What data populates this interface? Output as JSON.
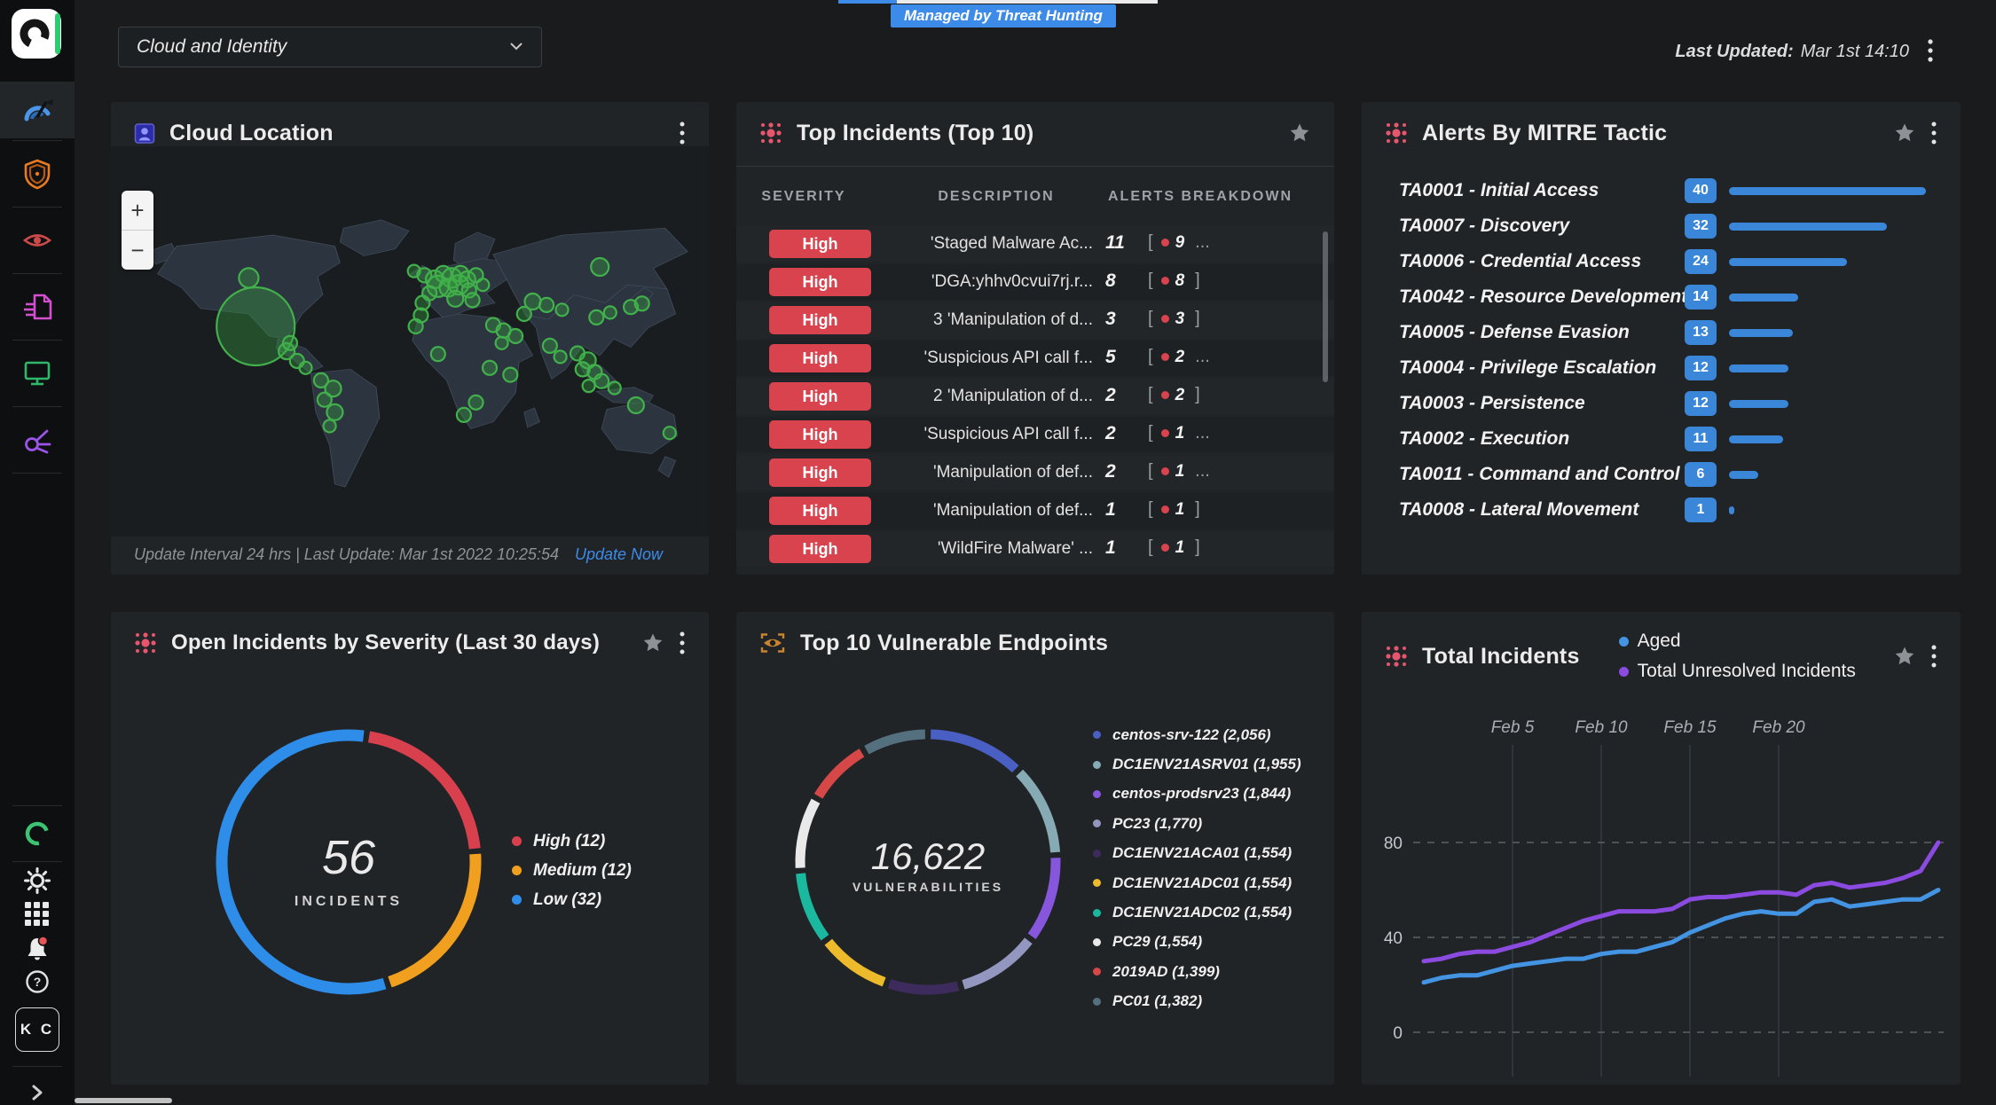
{
  "topbar": {
    "dropdown_value": "Cloud and Identity",
    "tab_badge": "Managed by Threat Hunting",
    "last_updated_label": "Last Updated:",
    "last_updated_value": "Mar 1st 14:10"
  },
  "sidebar": {
    "avatar_initials": "K C"
  },
  "panels": {
    "cloud_location": {
      "title": "Cloud Location",
      "zoom_in": "+",
      "zoom_out": "−",
      "footer_text": "Update Interval 24 hrs | Last Update: Mar 1st 2022 10:25:54",
      "update_now_label": "Update Now",
      "map_markers": [
        [
          152,
          98,
          11
        ],
        [
          160,
          168,
          44
        ],
        [
          196,
          204,
          9
        ],
        [
          208,
          218,
          8
        ],
        [
          218,
          228,
          7
        ],
        [
          200,
          192,
          8
        ],
        [
          236,
          246,
          8
        ],
        [
          250,
          258,
          9
        ],
        [
          240,
          274,
          8
        ],
        [
          252,
          292,
          9
        ],
        [
          246,
          312,
          7
        ],
        [
          344,
          88,
          7
        ],
        [
          356,
          94,
          8
        ],
        [
          368,
          100,
          10
        ],
        [
          378,
          92,
          9
        ],
        [
          388,
          98,
          11
        ],
        [
          398,
          92,
          9
        ],
        [
          406,
          100,
          9
        ],
        [
          416,
          94,
          8
        ],
        [
          424,
          108,
          7
        ],
        [
          372,
          110,
          12
        ],
        [
          384,
          112,
          10
        ],
        [
          396,
          108,
          11
        ],
        [
          408,
          116,
          8
        ],
        [
          362,
          120,
          8
        ],
        [
          354,
          134,
          8
        ],
        [
          392,
          128,
          9
        ],
        [
          412,
          130,
          8
        ],
        [
          352,
          152,
          8
        ],
        [
          346,
          168,
          8
        ],
        [
          372,
          208,
          8
        ],
        [
          402,
          296,
          8
        ],
        [
          432,
          228,
          8
        ],
        [
          416,
          278,
          8
        ],
        [
          456,
          238,
          8
        ],
        [
          436,
          166,
          8
        ],
        [
          448,
          174,
          8
        ],
        [
          462,
          182,
          8
        ],
        [
          446,
          192,
          7
        ],
        [
          560,
          82,
          10
        ],
        [
          482,
          132,
          9
        ],
        [
          498,
          137,
          8
        ],
        [
          516,
          144,
          7
        ],
        [
          472,
          150,
          8
        ],
        [
          502,
          196,
          8
        ],
        [
          514,
          212,
          7
        ],
        [
          534,
          207,
          8
        ],
        [
          546,
          217,
          9
        ],
        [
          540,
          230,
          8
        ],
        [
          554,
          234,
          8
        ],
        [
          562,
          247,
          8
        ],
        [
          547,
          254,
          7
        ],
        [
          556,
          155,
          8
        ],
        [
          572,
          148,
          7
        ],
        [
          596,
          140,
          8
        ],
        [
          609,
          135,
          8
        ],
        [
          577,
          257,
          7
        ],
        [
          602,
          282,
          9
        ],
        [
          641,
          322,
          7
        ]
      ]
    },
    "top_incidents": {
      "title": "Top Incidents (Top 10)",
      "columns": [
        "SEVERITY",
        "DESCRIPTION",
        "ALERTS BREAKDOWN"
      ],
      "severity_color": "#d8434e",
      "rows": [
        {
          "severity": "High",
          "description": "'Staged Malware Ac...",
          "count": "11",
          "breakdown": "9",
          "more": true
        },
        {
          "severity": "High",
          "description": "'DGA:yhhv0cvui7rj.r...",
          "count": "8",
          "breakdown": "8",
          "more": false
        },
        {
          "severity": "High",
          "description": "3 'Manipulation of d...",
          "count": "3",
          "breakdown": "3",
          "more": false
        },
        {
          "severity": "High",
          "description": "'Suspicious API call f...",
          "count": "5",
          "breakdown": "2",
          "more": true
        },
        {
          "severity": "High",
          "description": "2 'Manipulation of d...",
          "count": "2",
          "breakdown": "2",
          "more": false
        },
        {
          "severity": "High",
          "description": "'Suspicious API call f...",
          "count": "2",
          "breakdown": "1",
          "more": true
        },
        {
          "severity": "High",
          "description": "'Manipulation of def...",
          "count": "2",
          "breakdown": "1",
          "more": true
        },
        {
          "severity": "High",
          "description": "'Manipulation of def...",
          "count": "1",
          "breakdown": "1",
          "more": false
        },
        {
          "severity": "High",
          "description": "'WildFire Malware' ...",
          "count": "1",
          "breakdown": "1",
          "more": false
        }
      ]
    },
    "mitre": {
      "title": "Alerts By MITRE Tactic",
      "max": 40,
      "bar_color": "#3a86d8",
      "items": [
        {
          "label": "TA0001 - Initial Access",
          "value": 40
        },
        {
          "label": "TA0007 - Discovery",
          "value": 32
        },
        {
          "label": "TA0006 - Credential Access",
          "value": 24
        },
        {
          "label": "TA0042 - Resource Development",
          "value": 14
        },
        {
          "label": "TA0005 - Defense Evasion",
          "value": 13
        },
        {
          "label": "TA0004 - Privilege Escalation",
          "value": 12
        },
        {
          "label": "TA0003 - Persistence",
          "value": 12
        },
        {
          "label": "TA0002 - Execution",
          "value": 11
        },
        {
          "label": "TA0011 - Command and Control",
          "value": 6
        },
        {
          "label": "TA0008 - Lateral Movement",
          "value": 1
        }
      ]
    },
    "severity_donut": {
      "title": "Open Incidents by Severity (Last 30 days)",
      "center_value": "56",
      "center_label": "INCIDENTS",
      "chart_data": {
        "type": "pie",
        "items": [
          {
            "label": "High (12)",
            "value": 12,
            "color": "#d8404e"
          },
          {
            "label": "Medium (12)",
            "value": 12,
            "color": "#f0a01e"
          },
          {
            "label": "Low (32)",
            "value": 32,
            "color": "#2e8de8"
          }
        ]
      }
    },
    "endpoints_donut": {
      "title": "Top 10 Vulnerable Endpoints",
      "center_value": "16,622",
      "center_label": "VULNERABILITIES",
      "chart_data": {
        "type": "pie",
        "items": [
          {
            "label": "centos-srv-122 (2,056)",
            "value": 2056,
            "color": "#4a5fc4"
          },
          {
            "label": "DC1ENV21ASRV01 (1,955)",
            "value": 1955,
            "color": "#86abb4"
          },
          {
            "label": "centos-prodsrv23 (1,844)",
            "value": 1844,
            "color": "#8656dd"
          },
          {
            "label": "PC23 (1,770)",
            "value": 1770,
            "color": "#9396be"
          },
          {
            "label": "DC1ENV21ACA01 (1,554)",
            "value": 1554,
            "color": "#3c2b5c"
          },
          {
            "label": "DC1ENV21ADC01 (1,554)",
            "value": 1554,
            "color": "#ecba2a"
          },
          {
            "label": "DC1ENV21ADC02 (1,554)",
            "value": 1554,
            "color": "#1ab89e"
          },
          {
            "label": "PC29 (1,554)",
            "value": 1554,
            "color": "#e9e9e9"
          },
          {
            "label": "2019AD (1,399)",
            "value": 1399,
            "color": "#d64747"
          },
          {
            "label": "PC01 (1,382)",
            "value": 1382,
            "color": "#54707e"
          }
        ]
      }
    },
    "total_incidents": {
      "title": "Total Incidents",
      "legend": [
        {
          "label": "Aged",
          "color": "#4494e4"
        },
        {
          "label": "Total Unresolved Incidents",
          "color": "#8c4be0"
        }
      ],
      "chart_data": {
        "type": "line",
        "yticks": [
          0,
          40,
          80
        ],
        "xticks": [
          {
            "i": 5,
            "label": "Feb 5"
          },
          {
            "i": 10,
            "label": "Feb 10"
          },
          {
            "i": 15,
            "label": "Feb 15"
          },
          {
            "i": 20,
            "label": "Feb 20"
          }
        ],
        "series": [
          {
            "name": "Aged",
            "color": "#4494e4",
            "values": [
              21,
              23,
              24,
              24,
              26,
              28,
              29,
              30,
              31,
              31,
              33,
              34,
              34,
              36,
              38,
              42,
              45,
              48,
              50,
              51,
              50,
              50,
              55,
              56,
              53,
              54,
              55,
              56,
              56,
              60
            ]
          },
          {
            "name": "Total Unresolved Incidents",
            "color": "#8c4be0",
            "values": [
              30,
              31,
              33,
              34,
              34,
              36,
              38,
              41,
              44,
              47,
              49,
              51,
              51,
              51,
              52,
              56,
              57,
              57,
              58,
              59,
              59,
              58,
              62,
              63,
              61,
              62,
              63,
              65,
              68,
              80
            ]
          }
        ]
      }
    }
  }
}
